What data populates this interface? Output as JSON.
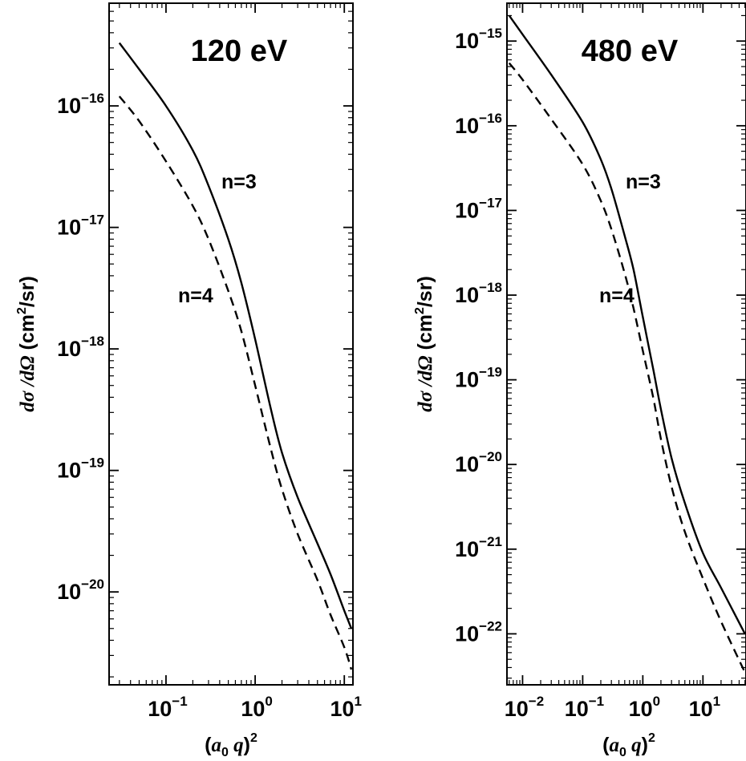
{
  "chart_data": [
    {
      "type": "line",
      "title": "120 eV",
      "xlabel": {
        "prefix": "(",
        "var1": "a",
        "sub": "0",
        "var2": " q",
        "suffix": ")",
        "sup": "2"
      },
      "ylabel": {
        "var": "dσ /dΩ",
        "unit_open": "  (cm",
        "unit_sup": "2",
        "unit_close": "/sr)"
      },
      "xscale": "log",
      "yscale": "log",
      "xlim": [
        0.023,
        12.5
      ],
      "ylim": [
        1.72e-21,
        7e-16
      ],
      "xticks": [
        {
          "value": 0.1,
          "base": "10",
          "exp": "−1"
        },
        {
          "value": 1,
          "base": "10",
          "exp": "0"
        },
        {
          "value": 10,
          "base": "10",
          "exp": "1"
        }
      ],
      "yticks": [
        {
          "value": 1e-16,
          "base": "10",
          "exp": "−16"
        },
        {
          "value": 1e-17,
          "base": "10",
          "exp": "−17"
        },
        {
          "value": 1e-18,
          "base": "10",
          "exp": "−18"
        },
        {
          "value": 1e-19,
          "base": "10",
          "exp": "−19"
        },
        {
          "value": 1e-20,
          "base": "10",
          "exp": "−20"
        }
      ],
      "grid": false,
      "series": [
        {
          "name": "n=3",
          "style": "solid",
          "x": [
            0.03,
            0.05,
            0.1,
            0.2,
            0.3,
            0.5,
            0.7,
            1.0,
            1.5,
            2.0,
            3.0,
            5.0,
            7.0,
            10.0,
            12.0
          ],
          "y": [
            3.3e-16,
            2e-16,
            1e-16,
            4.3e-17,
            2.2e-17,
            8e-18,
            3.5e-18,
            1.2e-18,
            3.2e-19,
            1.4e-19,
            6e-20,
            2.5e-20,
            1.4e-20,
            7e-21,
            5e-21
          ]
        },
        {
          "name": "n=4",
          "style": "dashed",
          "x": [
            0.03,
            0.05,
            0.1,
            0.2,
            0.3,
            0.5,
            0.7,
            1.0,
            1.5,
            2.0,
            3.0,
            5.0,
            7.0,
            10.0,
            12.0
          ],
          "y": [
            1.2e-16,
            7.5e-17,
            3.5e-17,
            1.5e-17,
            8e-18,
            3e-18,
            1.4e-18,
            5e-19,
            1.5e-19,
            7e-20,
            3e-20,
            1.25e-20,
            6.5e-21,
            3.5e-21,
            2.3e-21
          ]
        }
      ],
      "annotations": [
        {
          "text": "n=3",
          "series": "n=3"
        },
        {
          "text": "n=4",
          "series": "n=4"
        }
      ]
    },
    {
      "type": "line",
      "title": "480 eV",
      "xlabel": {
        "prefix": "(",
        "var1": "a",
        "sub": "0",
        "var2": " q",
        "suffix": ")",
        "sup": "2"
      },
      "ylabel": {
        "var": "dσ /dΩ",
        "unit_open": "  (cm",
        "unit_sup": "2",
        "unit_close": "/sr)"
      },
      "xscale": "log",
      "yscale": "log",
      "xlim": [
        0.0055,
        52
      ],
      "ylim": [
        2.5e-23,
        2.8e-15
      ],
      "xticks": [
        {
          "value": 0.01,
          "base": "10",
          "exp": "−2"
        },
        {
          "value": 0.1,
          "base": "10",
          "exp": "−1"
        },
        {
          "value": 1,
          "base": "10",
          "exp": "0"
        },
        {
          "value": 10,
          "base": "10",
          "exp": "1"
        }
      ],
      "yticks": [
        {
          "value": 1e-15,
          "base": "10",
          "exp": "−15"
        },
        {
          "value": 1e-16,
          "base": "10",
          "exp": "−16"
        },
        {
          "value": 1e-17,
          "base": "10",
          "exp": "−17"
        },
        {
          "value": 1e-18,
          "base": "10",
          "exp": "−18"
        },
        {
          "value": 1e-19,
          "base": "10",
          "exp": "−19"
        },
        {
          "value": 1e-20,
          "base": "10",
          "exp": "−20"
        },
        {
          "value": 1e-21,
          "base": "10",
          "exp": "−21"
        },
        {
          "value": 1e-22,
          "base": "10",
          "exp": "−22"
        }
      ],
      "grid": false,
      "series": [
        {
          "name": "n=3",
          "style": "solid",
          "x": [
            0.006,
            0.01,
            0.03,
            0.1,
            0.2,
            0.3,
            0.5,
            0.7,
            1.0,
            1.5,
            2.0,
            3.0,
            5.0,
            10.0,
            20.0,
            50.0
          ],
          "y": [
            2e-15,
            1.2e-15,
            4e-16,
            1.1e-16,
            4e-17,
            1.8e-17,
            5e-18,
            2e-18,
            5.5e-19,
            1.3e-19,
            4.5e-20,
            1.2e-20,
            3.5e-21,
            9e-22,
            3.5e-22,
            1e-22
          ]
        },
        {
          "name": "n=4",
          "style": "dashed",
          "x": [
            0.006,
            0.01,
            0.03,
            0.1,
            0.2,
            0.3,
            0.5,
            0.7,
            1.0,
            1.5,
            2.0,
            3.0,
            5.0,
            10.0,
            20.0,
            50.0
          ],
          "y": [
            5.5e-16,
            3.5e-16,
            1.2e-16,
            3.5e-17,
            1.3e-17,
            6e-18,
            1.8e-18,
            7e-19,
            2.2e-19,
            6e-20,
            2e-20,
            5.5e-21,
            1.6e-21,
            4.5e-22,
            1.4e-22,
            3.5e-23
          ]
        }
      ],
      "annotations": [
        {
          "text": "n=3",
          "series": "n=3"
        },
        {
          "text": "n=4",
          "series": "n=4"
        }
      ]
    }
  ]
}
